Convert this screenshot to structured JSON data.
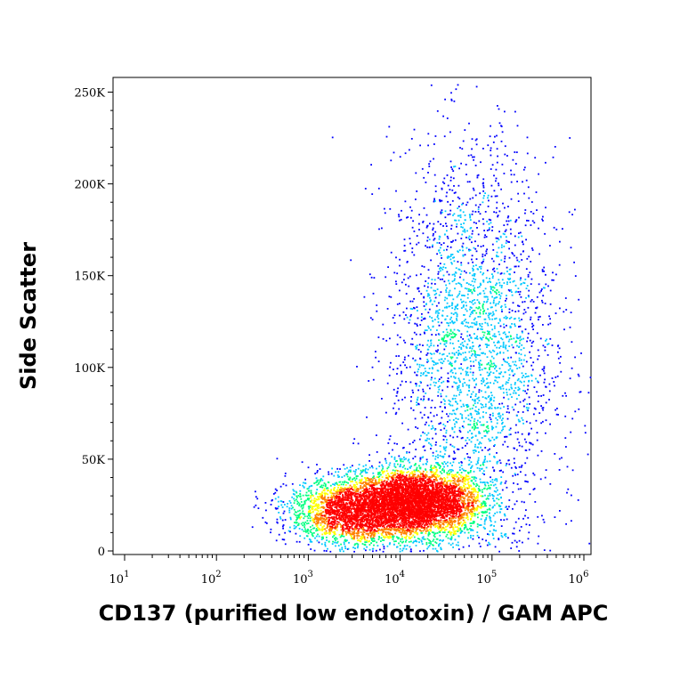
{
  "chart_data": {
    "type": "scatter",
    "subtype": "flow-cytometry-density-dot-plot",
    "xlabel": "CD137 (purified low endotoxin) / GAM APC",
    "ylabel": "Side Scatter",
    "x_scale": "log",
    "x_range": [
      10,
      1000000
    ],
    "y_range": [
      0,
      262144
    ],
    "y_ticks": [
      {
        "value": 0,
        "label": "0"
      },
      {
        "value": 50000,
        "label": "50K"
      },
      {
        "value": 100000,
        "label": "100K"
      },
      {
        "value": 150000,
        "label": "150K"
      },
      {
        "value": 200000,
        "label": "200K"
      },
      {
        "value": 250000,
        "label": "250K"
      }
    ],
    "x_ticks": [
      {
        "value": 10,
        "base": "10",
        "exp": "1"
      },
      {
        "value": 100,
        "base": "10",
        "exp": "2"
      },
      {
        "value": 1000,
        "base": "10",
        "exp": "3"
      },
      {
        "value": 10000,
        "base": "10",
        "exp": "4"
      },
      {
        "value": 100000,
        "base": "10",
        "exp": "5"
      },
      {
        "value": 1000000,
        "base": "10",
        "exp": "6"
      }
    ],
    "grid": false,
    "color_scale": [
      "#0000ff",
      "#00c8ff",
      "#00ff80",
      "#ffff00",
      "#ff8000",
      "#ff0000"
    ],
    "populations": [
      {
        "center_x": 15000,
        "center_y": 27000,
        "description": "dense main population",
        "spread_log_x": 0.35,
        "spread_y": 9000,
        "weight": 0.45
      },
      {
        "center_x": 3000,
        "center_y": 22000,
        "description": "low-expression population",
        "spread_log_x": 0.35,
        "spread_y": 9000,
        "weight": 0.25
      },
      {
        "center_x": 60000,
        "center_y": 110000,
        "description": "high side-scatter diffuse cells",
        "spread_log_x": 0.45,
        "spread_y": 55000,
        "weight": 0.3
      }
    ]
  }
}
